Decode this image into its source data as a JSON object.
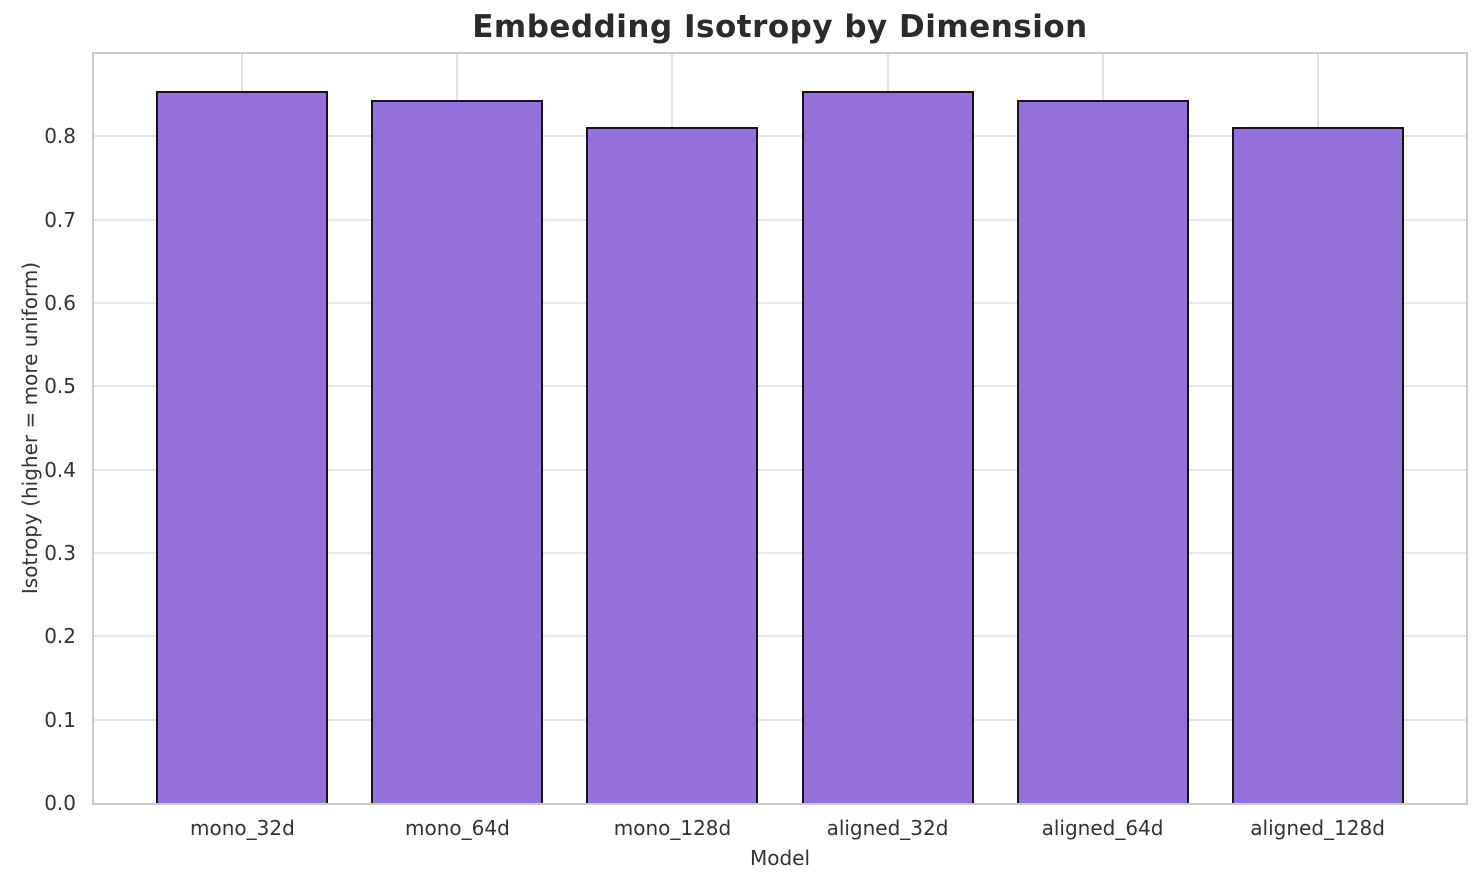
{
  "chart_data": {
    "type": "bar",
    "title": "Embedding Isotropy by Dimension",
    "xlabel": "Model",
    "ylabel": "Isotropy (higher = more uniform)",
    "categories": [
      "mono_32d",
      "mono_64d",
      "mono_128d",
      "aligned_32d",
      "aligned_64d",
      "aligned_128d"
    ],
    "values": [
      0.855,
      0.844,
      0.811,
      0.855,
      0.844,
      0.811
    ],
    "ylim": [
      0,
      0.899
    ],
    "yticks": [
      0.0,
      0.1,
      0.2,
      0.3,
      0.4,
      0.5,
      0.6,
      0.7,
      0.8
    ],
    "ytick_labels": [
      "0.0",
      "0.1",
      "0.2",
      "0.3",
      "0.4",
      "0.5",
      "0.6",
      "0.7",
      "0.8"
    ],
    "grid": true,
    "legend_position": "none",
    "bar_width_fraction": 0.8,
    "colors": {
      "bar_fill": "#9370DB",
      "bar_edge": "#151515",
      "grid": "#e5e5e5",
      "spine": "#cbcbcb",
      "text": "#333333",
      "title_text": "#2b2b2b",
      "background": "#ffffff"
    }
  }
}
